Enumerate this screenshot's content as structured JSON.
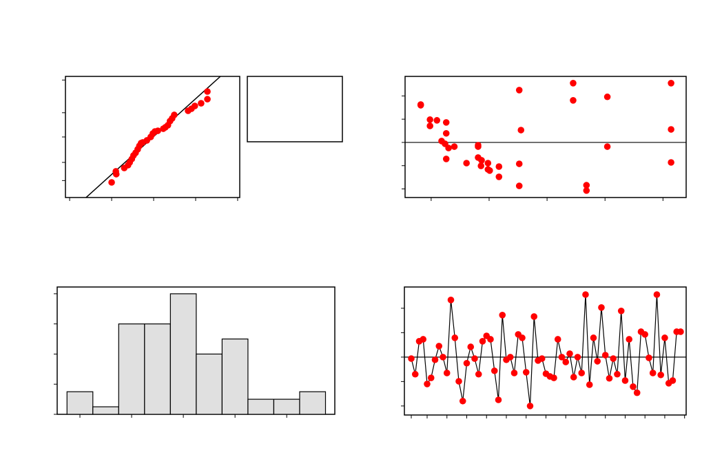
{
  "chart_data": [
    {
      "type": "scatter",
      "color": "#ff0000",
      "line_color": "#000000",
      "x": [
        -1.0,
        -0.89,
        -0.9,
        -0.7,
        -0.61,
        -0.57,
        -0.52,
        -0.48,
        -0.43,
        -0.38,
        -0.34,
        -0.3,
        -0.26,
        -0.16,
        -0.07,
        -0.02,
        0.03,
        0.1,
        0.23,
        0.28,
        0.34,
        0.39,
        0.44,
        0.49,
        0.82,
        0.9,
        0.98,
        1.13,
        1.28,
        1.28
      ],
      "y": [
        12.5,
        19.3,
        21.6,
        24.4,
        26.7,
        29.0,
        31.8,
        34.7,
        36.9,
        39.8,
        42.6,
        44.9,
        45.5,
        47.2,
        50.0,
        52.8,
        54.5,
        55.1,
        56.8,
        58.0,
        59.7,
        63.1,
        65.3,
        68.2,
        71.6,
        73.3,
        75.6,
        77.8,
        81.2,
        87.5
      ],
      "fit": {
        "x": [
          -1.61,
          1.59
        ],
        "y": [
          0,
          100
        ]
      },
      "xlim": [
        -2.1,
        2.05
      ],
      "ylim": [
        0,
        100
      ],
      "xticks": [
        -2,
        -1,
        0,
        1,
        2
      ],
      "yticks": [
        14,
        29,
        50,
        70,
        97
      ]
    },
    {
      "type": "scatter",
      "color": "#ff0000",
      "line_color": "#000000",
      "x": [
        0.82,
        0.82,
        0.98,
        0.98,
        1.1,
        1.26,
        1.26,
        1.26,
        1.18,
        1.24,
        1.3,
        1.4,
        1.61,
        1.81,
        1.81,
        1.81,
        1.87,
        1.86,
        1.98,
        1.98,
        2.01,
        2.17,
        2.17,
        2.52,
        2.52,
        2.52,
        2.55,
        3.45,
        3.45,
        3.68,
        3.68,
        4.04,
        4.04,
        5.14,
        5.14,
        5.14
      ],
      "y": [
        1.63,
        1.6,
        0.98,
        0.71,
        0.95,
        0.86,
        0.39,
        -0.71,
        0.06,
        -0.06,
        -0.24,
        -0.18,
        -0.89,
        -0.12,
        -0.18,
        -0.65,
        -0.77,
        -1.01,
        -0.89,
        -1.16,
        -1.21,
        -1.04,
        -1.48,
        2.25,
        -0.92,
        -1.87,
        0.53,
        2.55,
        1.81,
        -1.84,
        -2.07,
        1.96,
        -0.18,
        2.55,
        0.56,
        -0.86
      ],
      "hline": 0,
      "xlim": [
        0.55,
        5.4
      ],
      "ylim": [
        -2.37,
        2.84
      ],
      "xticks": [
        1,
        2,
        3,
        4,
        5
      ],
      "yticks": [
        -2,
        -1,
        0,
        1,
        2
      ]
    },
    {
      "type": "histogram",
      "color": "#e0e0e0",
      "line_color": "#000000",
      "bins": [
        -2.25,
        -1.75,
        -1.25,
        -0.75,
        -0.25,
        0.25,
        0.75,
        1.25,
        1.75,
        2.25,
        2.75
      ],
      "values": [
        3,
        1,
        12,
        12,
        16,
        8,
        10,
        2,
        2,
        3
      ],
      "xlim": [
        -2.44,
        2.93
      ],
      "ylim": [
        0,
        16.9
      ],
      "xticks": [
        -2,
        -1,
        0,
        1,
        2
      ],
      "yticks": [
        0,
        4,
        8,
        12,
        16
      ]
    },
    {
      "type": "line",
      "color": "#ff0000",
      "line_color": "#000000",
      "x": [
        1,
        2,
        3,
        4,
        5,
        6,
        7,
        8,
        9,
        10,
        11,
        12,
        13,
        14,
        15,
        16,
        17,
        18,
        19,
        20,
        21,
        22,
        23,
        24,
        25,
        26,
        27,
        28,
        29,
        30,
        31,
        32,
        33,
        34,
        35,
        36,
        37,
        38,
        39,
        40,
        41,
        42,
        43,
        44,
        45,
        46,
        47,
        48,
        49,
        50,
        51,
        52,
        53,
        54,
        55,
        56,
        57,
        58,
        59,
        60,
        61,
        62,
        63,
        64,
        65,
        66,
        67,
        68,
        69
      ],
      "y": [
        -0.06,
        -0.7,
        0.65,
        0.73,
        -1.1,
        -0.85,
        -0.11,
        0.45,
        0.0,
        -0.65,
        2.34,
        0.79,
        -0.99,
        -1.8,
        -0.25,
        0.42,
        -0.06,
        -0.7,
        0.65,
        0.87,
        0.73,
        -0.56,
        -1.75,
        1.72,
        -0.11,
        0.0,
        -0.65,
        0.93,
        0.79,
        -0.62,
        -2.0,
        1.66,
        -0.14,
        -0.06,
        -0.68,
        -0.79,
        -0.85,
        0.73,
        0.0,
        -0.2,
        0.14,
        -0.82,
        0.0,
        -0.65,
        2.56,
        -1.13,
        0.79,
        -0.17,
        2.03,
        0.08,
        -0.87,
        -0.06,
        -0.7,
        1.89,
        -0.96,
        0.73,
        -1.21,
        -1.46,
        1.04,
        0.93,
        -0.03,
        -0.65,
        2.56,
        -0.73,
        0.79,
        -1.07,
        -0.96,
        1.04,
        1.04
      ],
      "hline": 0,
      "xlim": [
        -0.74,
        70.4
      ],
      "ylim": [
        -2.37,
        2.87
      ],
      "xticks": [
        1,
        5,
        10,
        15,
        20,
        25,
        30,
        35,
        40,
        45,
        50,
        55,
        60,
        65,
        70
      ],
      "yticks": [
        -2,
        -1,
        0,
        1,
        2
      ]
    }
  ]
}
